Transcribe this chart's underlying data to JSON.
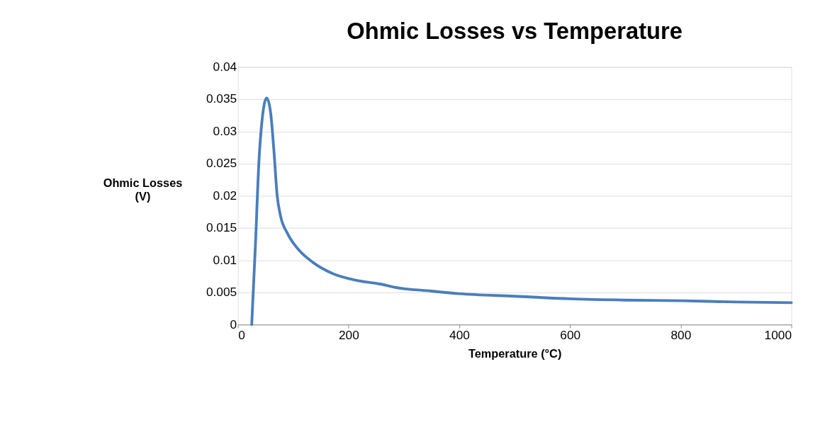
{
  "chart_data": {
    "type": "line",
    "title": "Ohmic Losses vs Temperature",
    "xlabel": "Temperature (°C)",
    "ylabel": "Ohmic Losses (V)",
    "x": [
      25,
      32,
      38,
      44,
      52,
      59,
      65,
      71,
      77,
      90,
      110,
      135,
      172,
      213,
      257,
      283,
      350,
      400,
      500,
      601,
      700,
      803,
      900,
      1000
    ],
    "series": [
      {
        "color": "#4a7ebb",
        "values": [
          0,
          0.013,
          0.0253,
          0.032,
          0.0352,
          0.033,
          0.0271,
          0.02,
          0.0169,
          0.0141,
          0.0116,
          0.0097,
          0.0079,
          0.0069,
          0.0063,
          0.0058,
          0.0052,
          0.0048,
          0.0044,
          0.004,
          0.0038,
          0.0037,
          0.0035,
          0.0034
        ]
      }
    ],
    "xlim": [
      0,
      1000
    ],
    "xticks": [
      0,
      200,
      400,
      600,
      800,
      1000
    ],
    "ylim": [
      0,
      0.04
    ],
    "yticks": [
      0,
      0.005,
      0.01,
      0.015,
      0.02,
      0.025,
      0.03,
      0.035,
      0.04
    ],
    "grid": "y",
    "legend": false,
    "marker": "none",
    "line_style": "solid"
  }
}
